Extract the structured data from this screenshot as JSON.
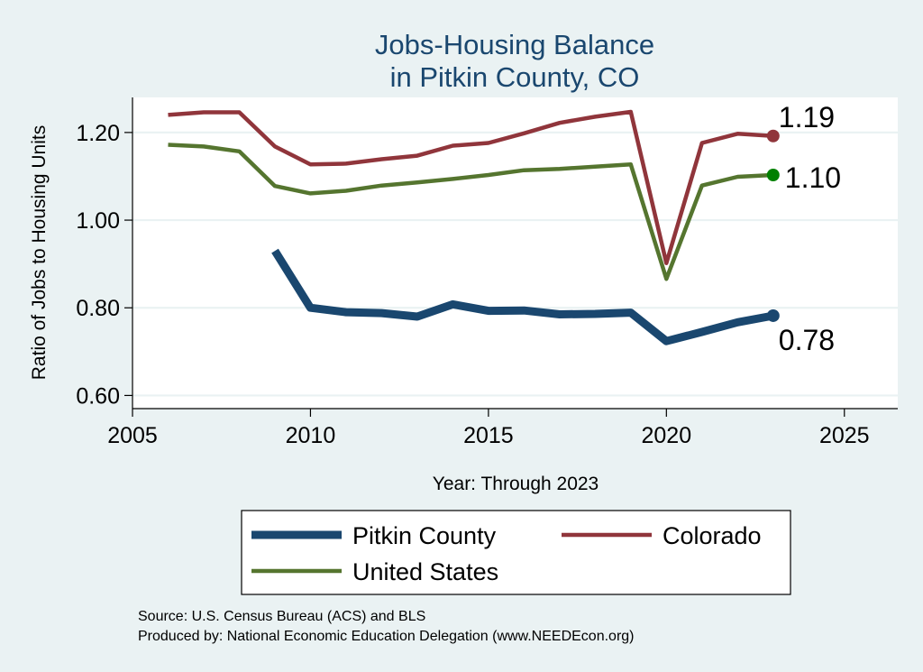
{
  "chart_data": {
    "type": "line",
    "title_line1": "Jobs-Housing Balance",
    "title_line2": "in Pitkin County, CO",
    "xlabel": "Year: Through 2023",
    "ylabel": "Ratio of Jobs to Housing Units",
    "xlim": [
      2005,
      2026.5
    ],
    "ylim": [
      0.57,
      1.28
    ],
    "x_ticks": [
      2005,
      2010,
      2015,
      2020,
      2025
    ],
    "y_ticks": [
      0.6,
      0.8,
      1.0,
      1.2
    ],
    "y_tick_labels": [
      "0.60",
      "0.80",
      "1.00",
      "1.20"
    ],
    "grid": true,
    "legend_position": "bottom",
    "series": [
      {
        "name": "Pitkin County",
        "color": "#1a476f",
        "x": [
          2009,
          2010,
          2011,
          2012,
          2013,
          2014,
          2015,
          2016,
          2017,
          2018,
          2019,
          2020,
          2021,
          2022,
          2023
        ],
        "values": [
          0.93,
          0.8,
          0.79,
          0.788,
          0.78,
          0.808,
          0.793,
          0.794,
          0.785,
          0.786,
          0.789,
          0.724,
          0.745,
          0.767,
          0.782
        ],
        "end_label": "0.78"
      },
      {
        "name": "Colorado",
        "color": "#90353b",
        "x": [
          2006,
          2007,
          2008,
          2009,
          2010,
          2011,
          2012,
          2013,
          2014,
          2015,
          2016,
          2017,
          2018,
          2019,
          2020,
          2021,
          2022,
          2023
        ],
        "values": [
          1.24,
          1.246,
          1.246,
          1.168,
          1.127,
          1.129,
          1.139,
          1.147,
          1.17,
          1.176,
          1.198,
          1.222,
          1.236,
          1.247,
          0.902,
          1.176,
          1.197,
          1.192
        ],
        "end_label": "1.19"
      },
      {
        "name": "United States",
        "color": "#55752f",
        "x": [
          2006,
          2007,
          2008,
          2009,
          2010,
          2011,
          2012,
          2013,
          2014,
          2015,
          2016,
          2017,
          2018,
          2019,
          2020,
          2021,
          2022,
          2023
        ],
        "values": [
          1.172,
          1.168,
          1.157,
          1.078,
          1.061,
          1.067,
          1.079,
          1.086,
          1.094,
          1.103,
          1.114,
          1.117,
          1.122,
          1.127,
          0.866,
          1.079,
          1.099,
          1.103
        ],
        "end_label": "1.10",
        "end_marker_color": "#008000"
      }
    ],
    "legend": [
      {
        "label": "Pitkin County",
        "series": 0
      },
      {
        "label": "Colorado",
        "series": 1
      },
      {
        "label": "United States",
        "series": 2
      }
    ],
    "notes": [
      "Source: U.S. Census Bureau (ACS) and BLS",
      "Produced by: National Economic Education Delegation (www.NEEDEcon.org)"
    ]
  }
}
